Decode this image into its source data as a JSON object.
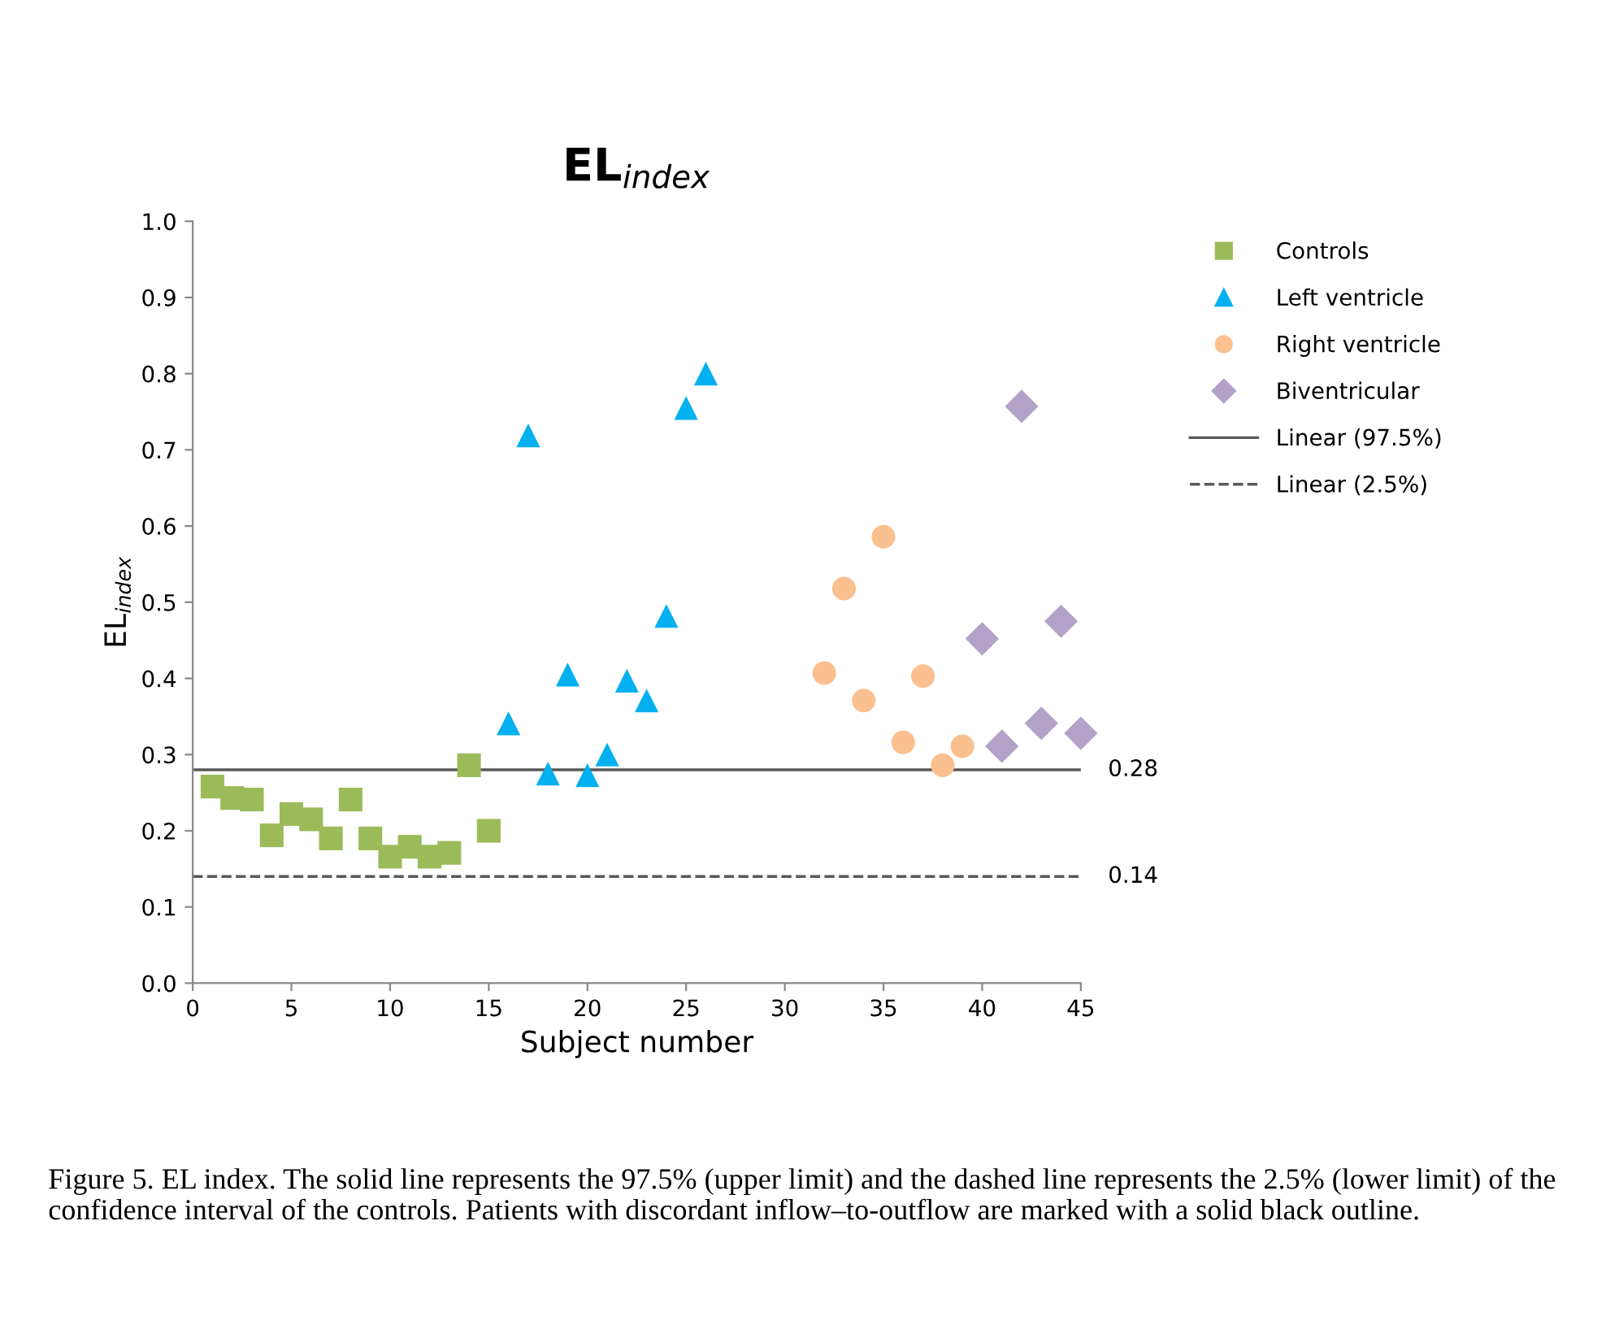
{
  "chart_data": {
    "type": "scatter",
    "title": "EL$_{index}$",
    "xlabel": "Subject number",
    "ylabel": "EL$_{index}$",
    "xlim": [
      0,
      45
    ],
    "xticks": [
      0,
      5,
      10,
      15,
      20,
      25,
      30,
      35,
      40,
      45
    ],
    "ylim": [
      0,
      1.0
    ],
    "yticks": [
      {
        "value": 0,
        "label": "0.0"
      },
      {
        "value": 0.1,
        "label": "0.1"
      },
      {
        "value": 0.2,
        "label": "0.2"
      },
      {
        "value": 0.3,
        "label": "0.3"
      },
      {
        "value": 0.4,
        "label": "0.4"
      },
      {
        "value": 0.5,
        "label": "0.5"
      },
      {
        "value": 0.6,
        "label": "0.6"
      },
      {
        "value": 0.7,
        "label": "0.7"
      },
      {
        "value": 0.8,
        "label": "0.8"
      },
      {
        "value": 0.9,
        "label": "0.9"
      },
      {
        "value": 1.0,
        "label": "1.0"
      }
    ],
    "grid": false,
    "legend": "right",
    "series": [
      {
        "name": "Controls",
        "marker": "square",
        "color": "#9bbb59",
        "x": [
          1,
          2,
          3,
          4,
          5,
          6,
          7,
          8,
          9,
          10,
          11,
          12,
          13,
          14,
          15
        ],
        "values": [
          0.258,
          0.243,
          0.241,
          0.194,
          0.222,
          0.215,
          0.19,
          0.241,
          0.19,
          0.166,
          0.179,
          0.166,
          0.171,
          0.286,
          0.2
        ]
      },
      {
        "name": "Left ventricle",
        "marker": "triangle",
        "color": "#00b0f0",
        "x": [
          16,
          17,
          18,
          19,
          20,
          21,
          22,
          23
        ],
        "values": [
          0.341,
          0.719,
          0.275,
          0.405,
          0.273,
          0.3,
          0.397,
          0.371
        ]
      },
      {
        "marker": "triangle",
        "color": "#00b0f0",
        "x": [
          24,
          25,
          26
        ],
        "values": [
          0.482,
          0.755,
          0.8
        ]
      },
      {
        "name": "Right ventricle",
        "marker": "circle",
        "color": "#fac090",
        "x": [
          32,
          33,
          34,
          35,
          36,
          37,
          38,
          39
        ],
        "values": [
          0.407,
          0.518,
          0.371,
          0.586,
          0.316,
          0.403,
          0.286,
          0.311
        ]
      },
      {
        "name": "Biventricular",
        "marker": "diamond",
        "color": "#b3a2c7",
        "x": [
          40,
          41,
          42,
          43,
          44,
          45
        ],
        "values": [
          0.452,
          0.311,
          0.757,
          0.341,
          0.475,
          0.328
        ]
      },
      {
        "name": "Linear (97.5%)",
        "type": "line",
        "line_style": "solid",
        "color": "#595959",
        "x": [
          0,
          45
        ],
        "values": [
          0.28,
          0.28
        ]
      },
      {
        "name": "Linear (2.5%)",
        "type": "line",
        "line_style": "dashed",
        "color": "#595959",
        "x": [
          0,
          45
        ],
        "values": [
          0.14,
          0.14
        ]
      }
    ],
    "annotations": [
      {
        "text": "0.28",
        "x": 45,
        "y": 0.28
      },
      {
        "text": "0.14",
        "x": 45,
        "y": 0.14
      },
      "Figure 5. EL index. The solid line represents the 97.5% (upper limit) and the dashed line represents the 2.5% (lower limit) of the confidence interval of the controls. Patients with discordant inflow–to-outflow are marked with a solid black outline."
    ]
  }
}
